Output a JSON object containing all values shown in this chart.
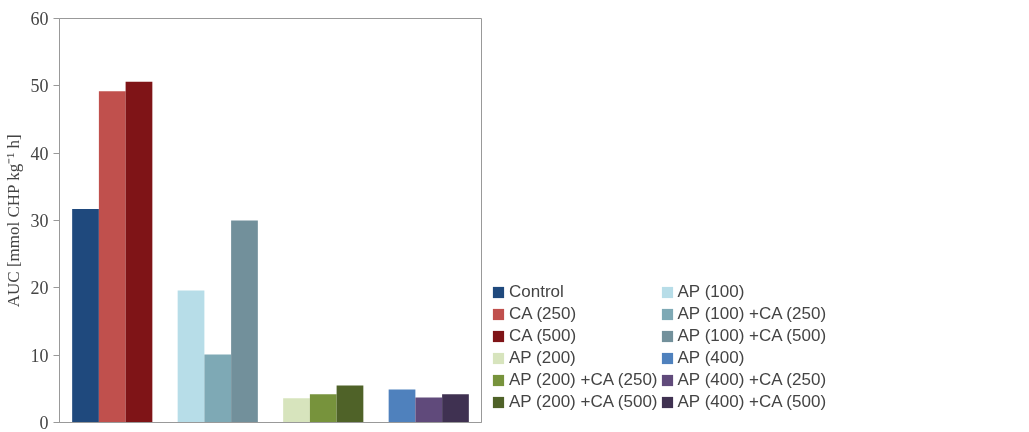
{
  "chart_data": {
    "type": "bar",
    "ylabel": "AUC [mmol CHP kg⁻¹ h]",
    "categories": [
      null,
      null,
      null,
      null
    ],
    "ylim": [
      0,
      60
    ],
    "yticks": [
      0,
      10,
      20,
      30,
      40,
      50,
      60
    ],
    "legend": "right",
    "series": [
      {
        "name": "Control",
        "color": "#1f497d",
        "values": [
          31.7,
          null,
          null,
          null
        ]
      },
      {
        "name": "CA (250)",
        "color": "#c0504d",
        "values": [
          49.2,
          null,
          null,
          null
        ]
      },
      {
        "name": "CA (500)",
        "color": "#7f1417",
        "values": [
          50.6,
          null,
          null,
          null
        ]
      },
      {
        "name": "AP (100)",
        "color": "#b7dde8",
        "values": [
          null,
          19.6,
          null,
          null
        ]
      },
      {
        "name": "AP (100) +CA (250)",
        "color": "#7ea9b5",
        "values": [
          null,
          10.1,
          null,
          null
        ]
      },
      {
        "name": "AP (100) +CA (500)",
        "color": "#72909b",
        "values": [
          null,
          30.0,
          null,
          null
        ]
      },
      {
        "name": "AP (200)",
        "color": "#d7e4bd",
        "values": [
          null,
          null,
          3.6,
          null
        ]
      },
      {
        "name": "AP (200) +CA (250)",
        "color": "#77933c",
        "values": [
          null,
          null,
          4.2,
          null
        ]
      },
      {
        "name": "AP (200) +CA (500)",
        "color": "#4f6228",
        "values": [
          null,
          null,
          5.5,
          null
        ]
      },
      {
        "name": "AP (400)",
        "color": "#4f81bd",
        "values": [
          null,
          null,
          null,
          4.9
        ]
      },
      {
        "name": "AP (400) +CA (250)",
        "color": "#604a7b",
        "values": [
          null,
          null,
          null,
          3.7
        ]
      },
      {
        "name": "AP (400) +CA (500)",
        "color": "#3f3151",
        "values": [
          null,
          null,
          null,
          4.2
        ]
      }
    ]
  }
}
